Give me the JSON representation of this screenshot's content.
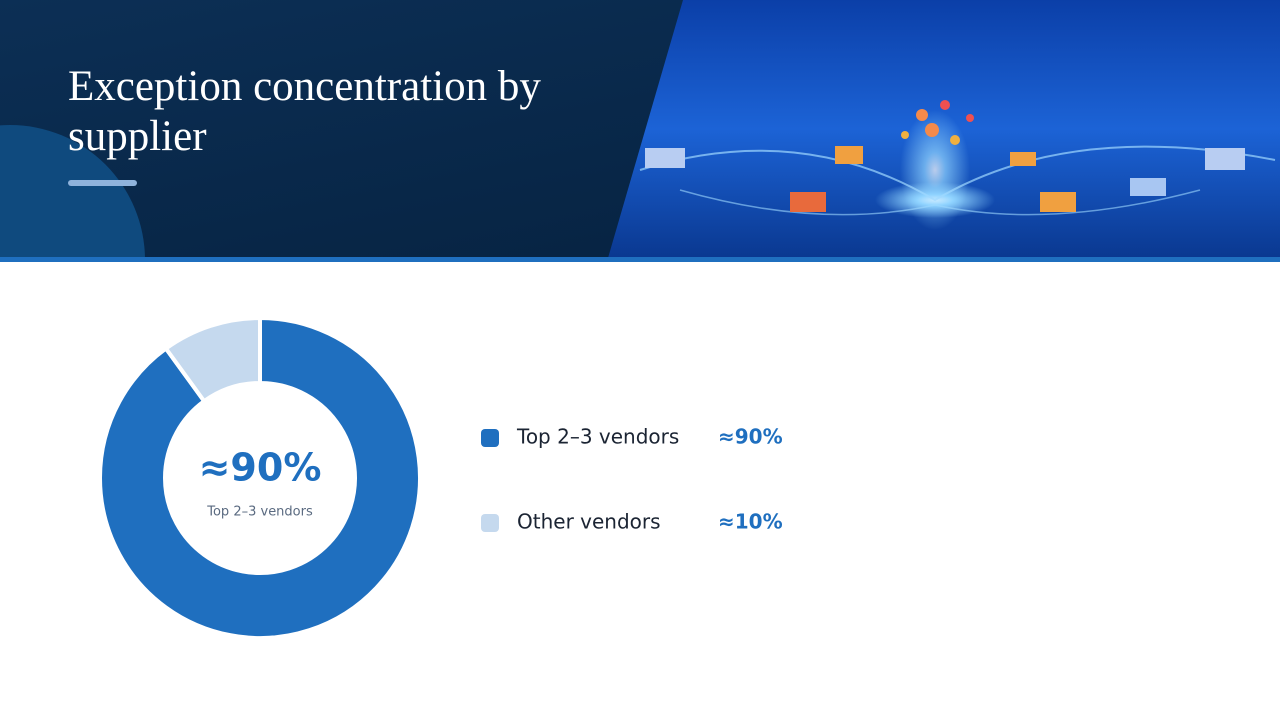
{
  "chart_data": {
    "type": "pie",
    "donut": true,
    "title": "Exception concentration by supplier",
    "categories": [
      "Top 2–3 vendors",
      "Other vendors"
    ],
    "values": [
      90,
      10
    ],
    "value_labels": [
      "≈90%",
      "≈10%"
    ],
    "colors": [
      "#1f6fbf",
      "#c5d9ee"
    ]
  }
}
